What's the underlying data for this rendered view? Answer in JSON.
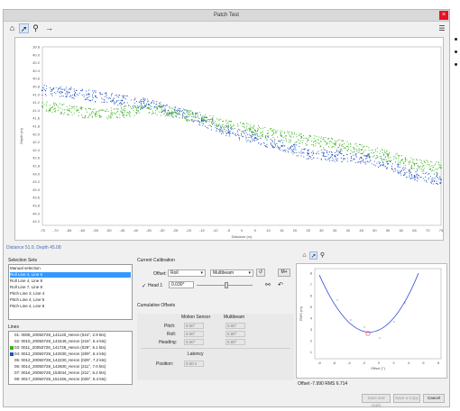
{
  "window": {
    "title": "Patch Test",
    "close_glyph": "×"
  },
  "toolbar": {
    "icons": [
      "home-icon",
      "pointer-icon",
      "zoom-icon",
      "pan-icon"
    ],
    "menu_icon": "menu-icon"
  },
  "chart_data": {
    "type": "scatter",
    "x_ticks": [
      "-75",
      "-70",
      "-65",
      "-60",
      "-55",
      "-50",
      "-45",
      "-40",
      "-35",
      "-30",
      "-25",
      "-20",
      "-15",
      "-10",
      "-5",
      "0",
      "5",
      "10",
      "15",
      "20",
      "25",
      "30",
      "35",
      "40",
      "45",
      "50",
      "55",
      "60",
      "65",
      "70",
      "75"
    ],
    "y_ticks": [
      "39.8",
      "40.0",
      "40.2",
      "40.4",
      "40.6",
      "40.8",
      "41.0",
      "41.2",
      "41.4",
      "41.6",
      "41.8",
      "42.0",
      "42.2",
      "42.4",
      "42.6",
      "42.8",
      "43.0",
      "43.2",
      "43.4",
      "43.6",
      "43.8",
      "44.0",
      "44.2"
    ],
    "xlabel": "Distance (m)",
    "ylabel": "Depth (m)",
    "xlim": [
      -75,
      75
    ],
    "ylim": [
      39.8,
      44.3
    ],
    "y_inverted": true,
    "grid": false,
    "series": [
      {
        "color": "#1f4fbf",
        "x": [
          -75,
          -65,
          -55,
          -45,
          -35,
          -25,
          -15,
          -5,
          5,
          15,
          25,
          35,
          45,
          55,
          65,
          75
        ],
        "y": [
          40.9,
          40.95,
          41.05,
          41.15,
          41.25,
          41.45,
          41.65,
          41.95,
          42.1,
          42.3,
          42.5,
          42.55,
          42.6,
          42.75,
          43.05,
          43.15
        ]
      },
      {
        "color": "#3cb01f",
        "x": [
          -75,
          -65,
          -55,
          -45,
          -35,
          -25,
          -15,
          -5,
          5,
          15,
          25,
          35,
          45,
          55,
          65,
          75
        ],
        "y": [
          41.3,
          41.4,
          41.5,
          41.45,
          41.35,
          41.45,
          41.6,
          41.8,
          41.9,
          42.05,
          42.15,
          42.25,
          42.4,
          42.55,
          42.75,
          42.85
        ]
      }
    ]
  },
  "status": {
    "coords": "Distance 51.0, Depth 45.08"
  },
  "selection_sets": {
    "title": "Selection Sets",
    "rows": [
      "Manual selection",
      "Roll      Line 4, Line 5",
      "Roll      Line 4, Line 8",
      "Roll      Line 7, Line 8",
      "Pitch     Line 3, Line 4",
      "Pitch     Line 4, Line 5",
      "Pitch     Line 4, Line 8"
    ],
    "selected_index": 1
  },
  "lines": {
    "title": "Lines",
    "rows": [
      {
        "label": "01: 0008_20050728_141140_Heron (044°, 2.9 kts)",
        "swatch": ""
      },
      {
        "label": "02: 0010_20050728_143449_Heron (216°, 6.4 kts)",
        "swatch": ""
      },
      {
        "label": "03: 0011_20050728_141728_Heron (029°, 5.1 kts)",
        "swatch": "#3cb01f"
      },
      {
        "label": "04: 0012_20050728_142030_Heron (209°, 6.4 kts)",
        "swatch": "#1f4fbf"
      },
      {
        "label": "05: 0012_20050728_142230_Heron (029°, 7.2 kts)",
        "swatch": ""
      },
      {
        "label": "06: 0014_20050728_142600_Heron (211°, 7.0 kts)",
        "swatch": ""
      },
      {
        "label": "07: 0016_20050728_153044_Heron (211°, 6.2 kts)",
        "swatch": ""
      },
      {
        "label": "08: 0017_20050728_151326_Heron (029°, 5.4 kts)",
        "swatch": ""
      }
    ]
  },
  "calibration": {
    "title": "Current Calibration",
    "offset_label": "Offset:",
    "offset_value": "Roll",
    "mode_value": "Multibeam",
    "mplus_label": "M+",
    "head_check": "✓",
    "head_label": "Head 1",
    "head_value": "0.030°"
  },
  "cumulative": {
    "title": "Cumulative Offsets",
    "col_motion": "Motion Sensor",
    "col_multibeam": "Multibeam",
    "pitch_label": "Pitch:",
    "roll_label": "Roll:",
    "heading_label": "Heading:",
    "pitch_motion": "0.00°",
    "pitch_multi": "0.00°",
    "roll_motion": "0.00°",
    "roll_multi": "0.00°",
    "heading_motion": "0.00°",
    "heading_multi": "0.00°",
    "latency_label": "Latency",
    "position_label": "Position:",
    "position_value": "0.00 s"
  },
  "mini_chart": {
    "xlabel": "Offset (°)",
    "ylabel": "RMS (m)",
    "x_ticks": [
      "-8",
      "-6",
      "-4",
      "-2",
      "0",
      "2",
      "4",
      "6",
      "8"
    ],
    "y_ticks": [
      "8",
      "7",
      "6",
      "5",
      "4",
      "3",
      "2",
      "1"
    ],
    "curve_color": "#2b3fd6",
    "min_marker_color": "#e03030",
    "result": "Offset -7.990  RMS 6.714"
  },
  "buttons": {
    "save_and_apply": "Save and Apply",
    "save_copy": "Save a Copy",
    "cancel": "Cancel"
  }
}
